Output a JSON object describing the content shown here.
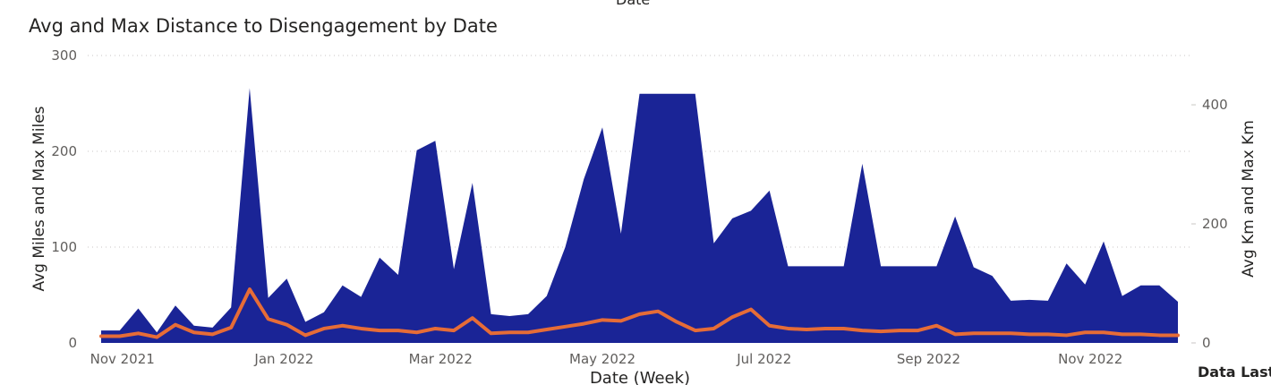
{
  "top_label": "Date",
  "footer_label": "Data Last",
  "chart_data": {
    "type": "area",
    "title": "Avg and Max Distance to Disengagement by Date",
    "xlabel": "Date (Week)",
    "ylabel": "Avg Miles and Max Miles",
    "y2label": "Avg Km and Max Km",
    "ylim": [
      0,
      300
    ],
    "y2lim": [
      0,
      482.8
    ],
    "yticks": [
      0,
      100,
      200,
      300
    ],
    "y2ticks": [
      0,
      200,
      400
    ],
    "grid": true,
    "x": [
      "2021-10-24",
      "2021-10-31",
      "2021-11-07",
      "2021-11-14",
      "2021-11-21",
      "2021-11-28",
      "2021-12-05",
      "2021-12-12",
      "2021-12-19",
      "2021-12-26",
      "2022-01-02",
      "2022-01-09",
      "2022-01-16",
      "2022-01-23",
      "2022-01-30",
      "2022-02-06",
      "2022-02-13",
      "2022-02-20",
      "2022-02-27",
      "2022-03-06",
      "2022-03-13",
      "2022-03-20",
      "2022-03-27",
      "2022-04-03",
      "2022-04-10",
      "2022-04-17",
      "2022-04-24",
      "2022-05-01",
      "2022-05-08",
      "2022-05-15",
      "2022-05-22",
      "2022-05-29",
      "2022-06-05",
      "2022-06-12",
      "2022-06-19",
      "2022-06-26",
      "2022-07-03",
      "2022-07-10",
      "2022-07-17",
      "2022-07-24",
      "2022-07-31",
      "2022-08-07",
      "2022-08-14",
      "2022-08-21",
      "2022-08-28",
      "2022-09-04",
      "2022-09-11",
      "2022-09-18",
      "2022-09-25",
      "2022-10-02",
      "2022-10-09",
      "2022-10-16",
      "2022-10-23",
      "2022-10-30",
      "2022-11-06",
      "2022-11-13",
      "2022-11-20",
      "2022-11-27",
      "2022-12-04"
    ],
    "x_tick_labels": [
      {
        "date": "2021-11-01",
        "label": "Nov 2021"
      },
      {
        "date": "2022-01-01",
        "label": "Jan 2022"
      },
      {
        "date": "2022-03-01",
        "label": "Mar 2022"
      },
      {
        "date": "2022-05-01",
        "label": "May 2022"
      },
      {
        "date": "2022-07-01",
        "label": "Jul 2022"
      },
      {
        "date": "2022-09-01",
        "label": "Sep 2022"
      },
      {
        "date": "2022-11-01",
        "label": "Nov 2022"
      }
    ],
    "series": [
      {
        "name": "Max Miles",
        "color": "#1a2496",
        "values": [
          13,
          13,
          36,
          11,
          39,
          18,
          16,
          37,
          266,
          47,
          67,
          22,
          32,
          60,
          48,
          89,
          71,
          201,
          211,
          77,
          167,
          30,
          28,
          30,
          49,
          100,
          171,
          225,
          114,
          260,
          260,
          260,
          260,
          104,
          130,
          138,
          159,
          80,
          80,
          80,
          80,
          187,
          80,
          80,
          80,
          80,
          132,
          79,
          70,
          44,
          45,
          44,
          83,
          61,
          106,
          49,
          60,
          60,
          43
        ]
      },
      {
        "name": "Avg Miles",
        "color": "#e66c37",
        "values": [
          7,
          7,
          10,
          6,
          19,
          11,
          9,
          16,
          56,
          25,
          19,
          8,
          15,
          18,
          15,
          13,
          13,
          11,
          15,
          13,
          26,
          10,
          11,
          11,
          14,
          17,
          20,
          24,
          23,
          30,
          33,
          22,
          13,
          15,
          27,
          35,
          18,
          15,
          14,
          15,
          15,
          13,
          12,
          13,
          13,
          18,
          9,
          10,
          10,
          10,
          9,
          9,
          8,
          11,
          11,
          9,
          9,
          8,
          8
        ]
      }
    ]
  }
}
